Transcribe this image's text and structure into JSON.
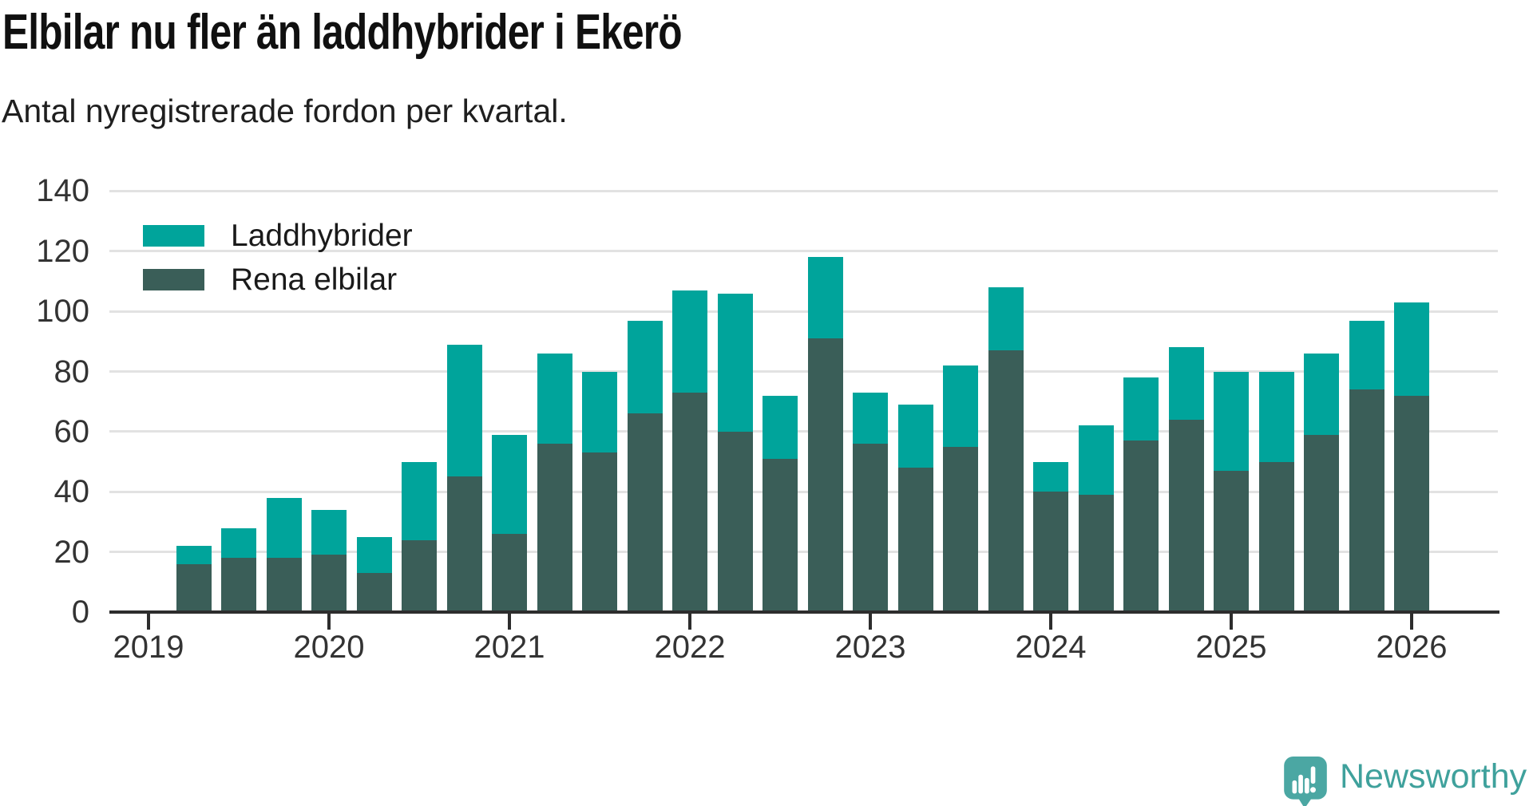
{
  "title": "Elbilar nu fler än laddhybrider i Ekerö",
  "subtitle": "Antal nyregistrerade fordon per kvartal.",
  "colors": {
    "laddhybrider": "#00a49b",
    "rena_elbilar": "#3a5e58",
    "logo_bubble": "#4ba7a3",
    "logo_text": "#3fa19c"
  },
  "legend": [
    {
      "label": "Laddhybrider",
      "color_key": "laddhybrider"
    },
    {
      "label": "Rena elbilar",
      "color_key": "rena_elbilar"
    }
  ],
  "footer": {
    "brand": "Newsworthy",
    "logo_icon": "speech-bubble-bar-chart-icon"
  },
  "chart_data": {
    "type": "bar",
    "stacked": true,
    "title": "Elbilar nu fler än laddhybrider i Ekerö",
    "subtitle": "Antal nyregistrerade fordon per kvartal.",
    "categories": [
      "2019-Q2",
      "2019-Q3",
      "2019-Q4",
      "2020-Q1",
      "2020-Q2",
      "2020-Q3",
      "2020-Q4",
      "2021-Q1",
      "2021-Q2",
      "2021-Q3",
      "2021-Q4",
      "2022-Q1",
      "2022-Q2",
      "2022-Q3",
      "2022-Q4",
      "2023-Q1",
      "2023-Q2",
      "2023-Q3",
      "2023-Q4",
      "2024-Q1",
      "2024-Q2",
      "2024-Q3",
      "2024-Q4",
      "2025-Q1",
      "2025-Q2",
      "2025-Q3",
      "2025-Q4",
      "2026-Q1"
    ],
    "series": [
      {
        "name": "Rena elbilar",
        "values": [
          16,
          18,
          18,
          19,
          13,
          24,
          45,
          26,
          56,
          53,
          66,
          73,
          60,
          51,
          91,
          56,
          48,
          55,
          87,
          40,
          39,
          57,
          64,
          47,
          50,
          59,
          74,
          72
        ]
      },
      {
        "name": "Laddhybrider",
        "values": [
          6,
          10,
          20,
          15,
          12,
          26,
          44,
          33,
          30,
          27,
          31,
          34,
          46,
          21,
          27,
          17,
          21,
          27,
          21,
          10,
          23,
          21,
          24,
          33,
          30,
          27,
          23,
          31
        ]
      }
    ],
    "totals": [
      22,
      28,
      38,
      34,
      25,
      50,
      89,
      59,
      86,
      80,
      97,
      107,
      106,
      72,
      118,
      73,
      69,
      82,
      108,
      50,
      62,
      78,
      88,
      80,
      80,
      86,
      97,
      103
    ],
    "ylim": [
      0,
      140
    ],
    "yticks": [
      0,
      20,
      40,
      60,
      80,
      100,
      120,
      140
    ],
    "xtick_labels": [
      "2019",
      "2020",
      "2021",
      "2022",
      "2023",
      "2024",
      "2025",
      "2026"
    ],
    "grid": "horizontal",
    "legend_position": "top-left"
  }
}
